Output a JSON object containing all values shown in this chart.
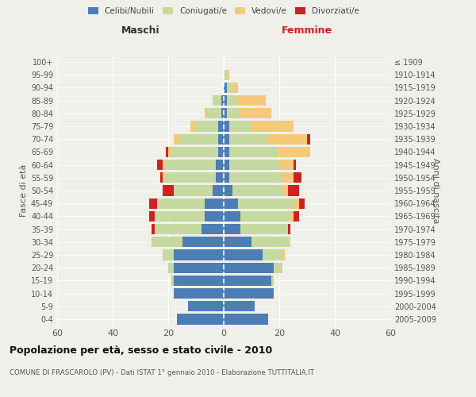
{
  "age_groups": [
    "0-4",
    "5-9",
    "10-14",
    "15-19",
    "20-24",
    "25-29",
    "30-34",
    "35-39",
    "40-44",
    "45-49",
    "50-54",
    "55-59",
    "60-64",
    "65-69",
    "70-74",
    "75-79",
    "80-84",
    "85-89",
    "90-94",
    "95-99",
    "100+"
  ],
  "birth_years": [
    "2005-2009",
    "2000-2004",
    "1995-1999",
    "1990-1994",
    "1985-1989",
    "1980-1984",
    "1975-1979",
    "1970-1974",
    "1965-1969",
    "1960-1964",
    "1955-1959",
    "1950-1954",
    "1945-1949",
    "1940-1944",
    "1935-1939",
    "1930-1934",
    "1925-1929",
    "1920-1924",
    "1915-1919",
    "1910-1914",
    "≤ 1909"
  ],
  "maschi_celibi": [
    17,
    13,
    18,
    18,
    18,
    18,
    15,
    8,
    7,
    7,
    4,
    3,
    3,
    2,
    2,
    2,
    1,
    1,
    0,
    0,
    0
  ],
  "maschi_coniugati": [
    0,
    0,
    0,
    1,
    2,
    4,
    11,
    17,
    18,
    17,
    14,
    18,
    18,
    17,
    14,
    8,
    5,
    3,
    0,
    0,
    0
  ],
  "maschi_vedovi": [
    0,
    0,
    0,
    0,
    0,
    0,
    0,
    0,
    0,
    0,
    0,
    1,
    1,
    1,
    2,
    2,
    1,
    0,
    0,
    0,
    0
  ],
  "maschi_divorziati": [
    0,
    0,
    0,
    0,
    0,
    0,
    0,
    1,
    2,
    3,
    4,
    1,
    2,
    1,
    0,
    0,
    0,
    0,
    0,
    0,
    0
  ],
  "femmine_celibi": [
    16,
    11,
    18,
    17,
    18,
    14,
    10,
    6,
    6,
    5,
    3,
    2,
    2,
    2,
    2,
    2,
    1,
    1,
    1,
    0,
    0
  ],
  "femmine_coniugati": [
    0,
    0,
    0,
    1,
    3,
    7,
    14,
    17,
    18,
    20,
    18,
    19,
    18,
    17,
    14,
    8,
    5,
    4,
    2,
    1,
    0
  ],
  "femmine_vedovi": [
    0,
    0,
    0,
    0,
    0,
    1,
    0,
    0,
    1,
    2,
    2,
    4,
    5,
    12,
    14,
    15,
    11,
    10,
    2,
    1,
    0
  ],
  "femmine_divorziati": [
    0,
    0,
    0,
    0,
    0,
    0,
    0,
    1,
    2,
    2,
    4,
    3,
    1,
    0,
    1,
    0,
    0,
    0,
    0,
    0,
    0
  ],
  "color_celibi": "#4d7db5",
  "color_coniugati": "#c5d9a0",
  "color_vedovi": "#f5c97a",
  "color_divorziati": "#cc2222",
  "title": "Popolazione per età, sesso e stato civile - 2010",
  "subtitle": "COMUNE DI FRASCAROLO (PV) - Dati ISTAT 1° gennaio 2010 - Elaborazione TUTTITALIA.IT",
  "xlabel_left": "Maschi",
  "xlabel_right": "Femmine",
  "ylabel_left": "Fasce di età",
  "ylabel_right": "Anni di nascita",
  "xlim": 60,
  "legend_labels": [
    "Celibi/Nubili",
    "Coniugati/e",
    "Vedovi/e",
    "Divorziati/e"
  ],
  "bg_color": "#f0f0eb"
}
